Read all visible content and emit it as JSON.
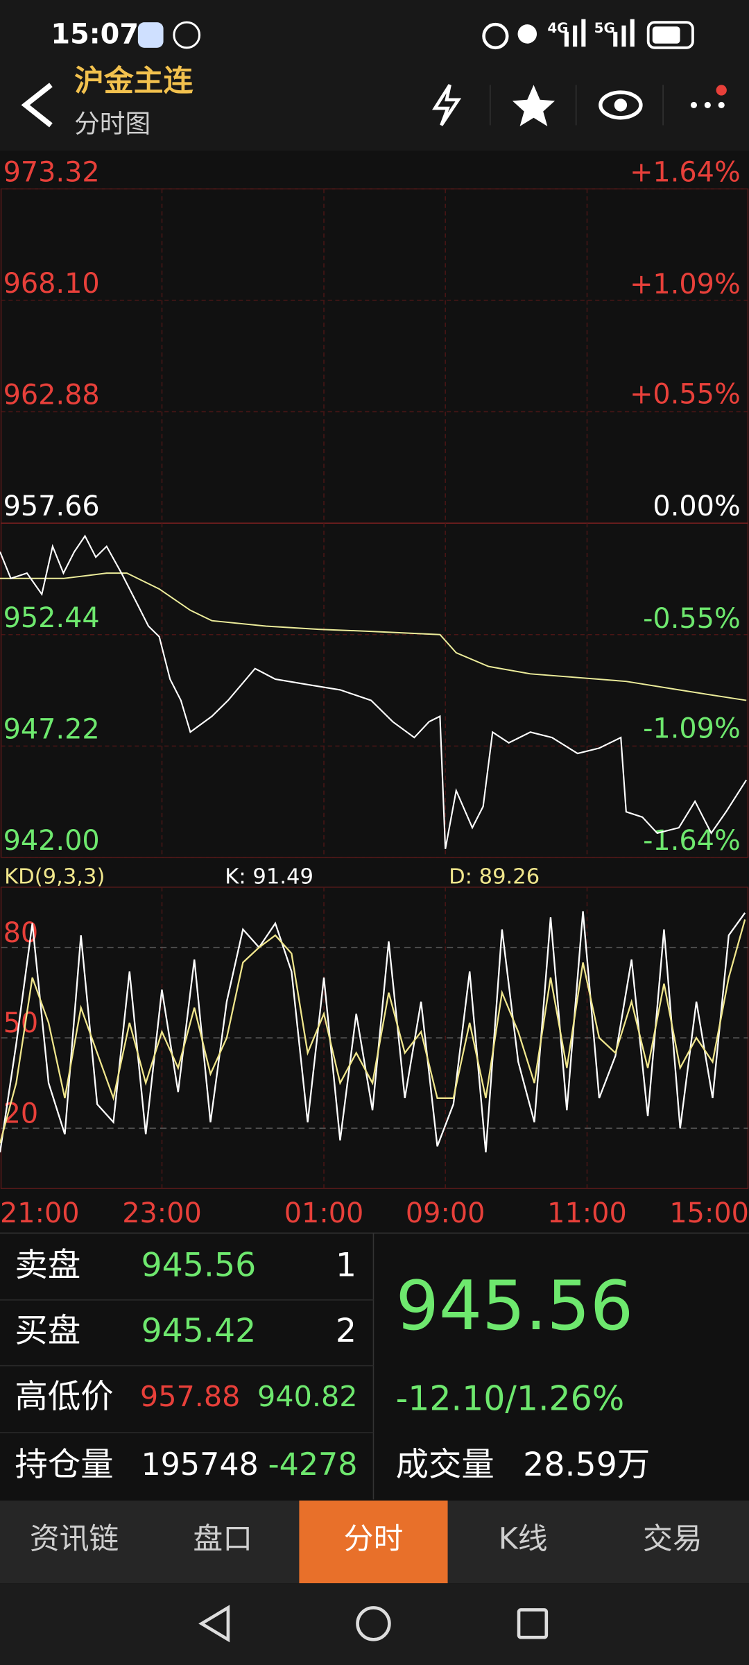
{
  "status_bar": {
    "time": "15:07",
    "network1": "4G",
    "network2": "5G"
  },
  "header": {
    "title": "沪金主连",
    "subtitle": "分时图"
  },
  "price_chart": {
    "type": "line",
    "grid": true,
    "ylim": [
      942,
      973.32
    ],
    "yticks": [
      973.32,
      {
        "value": 968.1,
        "label": "968.10"
      },
      962.88,
      957.66,
      952.44,
      947.22,
      {
        "value": 942,
        "label": "942.00"
      }
    ],
    "y2lim": [
      -1.64,
      1.64
    ],
    "y2ticks": [
      {
        "value": 1.64,
        "label": "+1.64%"
      },
      {
        "value": 1.09,
        "label": "+1.09%"
      },
      {
        "value": 0.55,
        "label": "+0.55%"
      },
      {
        "value": 0,
        "label": "0.00%"
      },
      {
        "value": -0.55,
        "label": "-0.55%"
      },
      {
        "value": -1.09,
        "label": "-1.09%"
      },
      {
        "value": -1.64,
        "label": "-1.64%"
      }
    ],
    "price": {
      "color": "#ffffff",
      "x": [
        0,
        8,
        20,
        31,
        39,
        47,
        55,
        63,
        71,
        79,
        90,
        102,
        110,
        118,
        126,
        134,
        141,
        157,
        169,
        189,
        204,
        228,
        252,
        275,
        291,
        307,
        318,
        326,
        330,
        338,
        350,
        358,
        365,
        377,
        393,
        409,
        428,
        444,
        460,
        464,
        476,
        487,
        503,
        515,
        527,
        538,
        553
      ],
      "values": [
        956.32,
        955.07,
        955.32,
        954.33,
        956.57,
        955.32,
        956.32,
        957.06,
        956.07,
        956.57,
        955.32,
        953.83,
        952.84,
        952.34,
        950.35,
        949.36,
        947.87,
        948.61,
        949.36,
        950.85,
        950.35,
        950.1,
        949.85,
        949.36,
        948.36,
        947.62,
        948.36,
        948.61,
        942.4,
        945.13,
        943.39,
        944.39,
        947.87,
        947.37,
        947.87,
        947.62,
        946.87,
        947.12,
        947.62,
        944.14,
        943.89,
        943.14,
        943.39,
        944.63,
        943.14,
        944.14,
        945.63
      ]
    },
    "average": {
      "color": "#ecec9a",
      "x": [
        0,
        47,
        79,
        94,
        118,
        141,
        157,
        197,
        236,
        275,
        326,
        338,
        362,
        393,
        464,
        503,
        553
      ],
      "values": [
        955.07,
        955.07,
        955.32,
        955.32,
        954.58,
        953.58,
        953.09,
        952.84,
        952.69,
        952.59,
        952.44,
        951.59,
        950.95,
        950.6,
        950.25,
        949.85,
        949.36
      ]
    }
  },
  "kd_chart": {
    "type": "line",
    "title": "KD(9,3,3)",
    "k_label": "K: 91.49",
    "d_label": "D: 89.26",
    "ylim": [
      0,
      100
    ],
    "yticks": [
      80,
      50,
      20
    ],
    "x": [
      0,
      12,
      24,
      36,
      48,
      60,
      72,
      84,
      96,
      108,
      120,
      132,
      144,
      156,
      168,
      180,
      192,
      204,
      216,
      228,
      240,
      252,
      264,
      276,
      288,
      300,
      312,
      324,
      336,
      348,
      360,
      372,
      384,
      396,
      408,
      420,
      432,
      444,
      456,
      468,
      480,
      492,
      504,
      516,
      528,
      540,
      552
    ],
    "k": {
      "color": "#ffffff",
      "values": [
        12,
        48,
        88,
        35,
        18,
        84,
        28,
        22,
        72,
        18,
        66,
        32,
        76,
        22,
        62,
        86,
        80,
        88,
        72,
        22,
        70,
        16,
        58,
        26,
        82,
        30,
        62,
        14,
        28,
        72,
        12,
        86,
        42,
        22,
        90,
        26,
        92,
        30,
        44,
        76,
        24,
        86,
        20,
        62,
        30,
        84,
        91.49
      ]
    },
    "d": {
      "color": "#f0e68c",
      "values": [
        15,
        35,
        70,
        55,
        30,
        60,
        45,
        30,
        55,
        35,
        52,
        40,
        60,
        38,
        50,
        75,
        80,
        84,
        78,
        45,
        58,
        35,
        45,
        35,
        65,
        45,
        52,
        30,
        30,
        55,
        30,
        65,
        52,
        35,
        70,
        40,
        75,
        50,
        45,
        62,
        40,
        68,
        40,
        50,
        42,
        70,
        89.26
      ]
    }
  },
  "time_axis": {
    "xlim": [
      0,
      555
    ],
    "xticks": [
      {
        "value": 0,
        "label": "21:00"
      },
      {
        "value": 120,
        "label": "23:00"
      },
      {
        "value": 240,
        "label": "01:00"
      },
      {
        "value": 330,
        "label": "09:00"
      },
      {
        "value": 435,
        "label": "11:00"
      },
      {
        "value": 555,
        "label": "15:00"
      }
    ]
  },
  "quote": {
    "rows": [
      [
        "卖盘",
        "945.56",
        "1"
      ],
      [
        "买盘",
        "945.42",
        "2"
      ],
      [
        "高低价",
        "957.88",
        "940.82"
      ],
      [
        "持仓量",
        "195748",
        "-4278"
      ]
    ],
    "last": "945.56",
    "change": "-12.10/1.26%",
    "volume_label": "成交量",
    "volume": "28.59万"
  },
  "tabs": [
    "资讯链",
    "盘口",
    "分时",
    "K线",
    "交易"
  ]
}
